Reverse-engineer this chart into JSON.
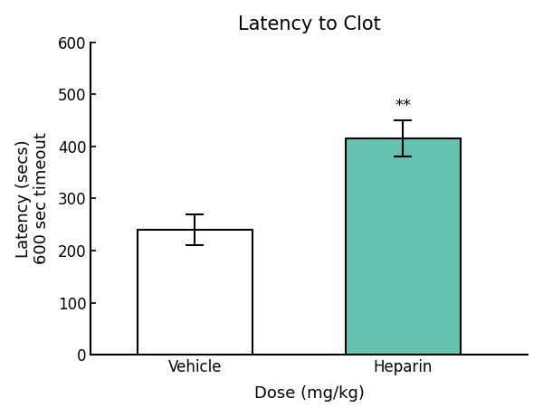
{
  "title": "Latency to Clot",
  "xlabel": "Dose (mg/kg)",
  "ylabel": "Latency (secs)\n600 sec timeout",
  "categories": [
    "Vehicle",
    "Heparin"
  ],
  "values": [
    240,
    415
  ],
  "errors": [
    30,
    35
  ],
  "bar_colors": [
    "#ffffff",
    "#66c2b0"
  ],
  "bar_edgecolors": [
    "#000000",
    "#000000"
  ],
  "ylim": [
    0,
    600
  ],
  "yticks": [
    0,
    100,
    200,
    300,
    400,
    500,
    600
  ],
  "significance": [
    "",
    "**"
  ],
  "sig_fontsize": 13,
  "title_fontsize": 15,
  "label_fontsize": 13,
  "tick_fontsize": 12,
  "bar_width": 0.55,
  "background_color": "#ffffff",
  "x_positions": [
    1,
    2
  ]
}
